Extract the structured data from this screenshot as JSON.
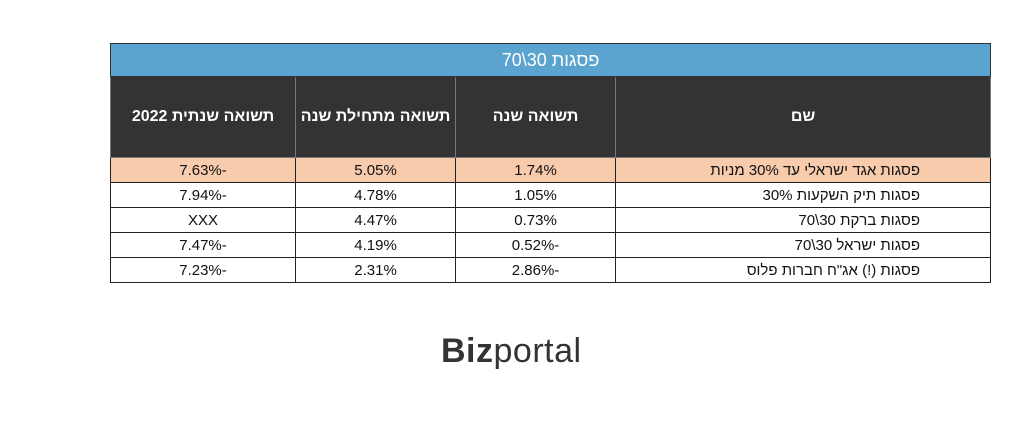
{
  "table": {
    "title": "פסגות 30\\70",
    "headers": {
      "name": "שם",
      "year": "תשואה שנה",
      "ytd": "תשואה מתחילת שנה",
      "y2022": "תשואה שנתית 2022"
    },
    "rows": [
      {
        "name": "פסגות אגד ישראלי עד 30% מניות",
        "year": "1.74%",
        "ytd": "5.05%",
        "y2022": "-7.63%"
      },
      {
        "name": "פסגות תיק השקעות 30%",
        "year": "1.05%",
        "ytd": "4.78%",
        "y2022": "-7.94%"
      },
      {
        "name": "פסגות ברקת 30\\70",
        "year": "0.73%",
        "ytd": "4.47%",
        "y2022": "XXX"
      },
      {
        "name": "פסגות ישראל 30\\70",
        "year": "-0.52%",
        "ytd": "4.19%",
        "y2022": "-7.47%"
      },
      {
        "name": "פסגות (!) אג\"ח חברות פלוס",
        "year": "-2.86%",
        "ytd": "2.31%",
        "y2022": "-7.23%"
      }
    ],
    "highlight_color": "#f8cbad",
    "title_bg": "#5ba4cf",
    "header_bg": "#333333"
  },
  "logo": {
    "bold_part": "Biz",
    "regular_part": "portal"
  }
}
